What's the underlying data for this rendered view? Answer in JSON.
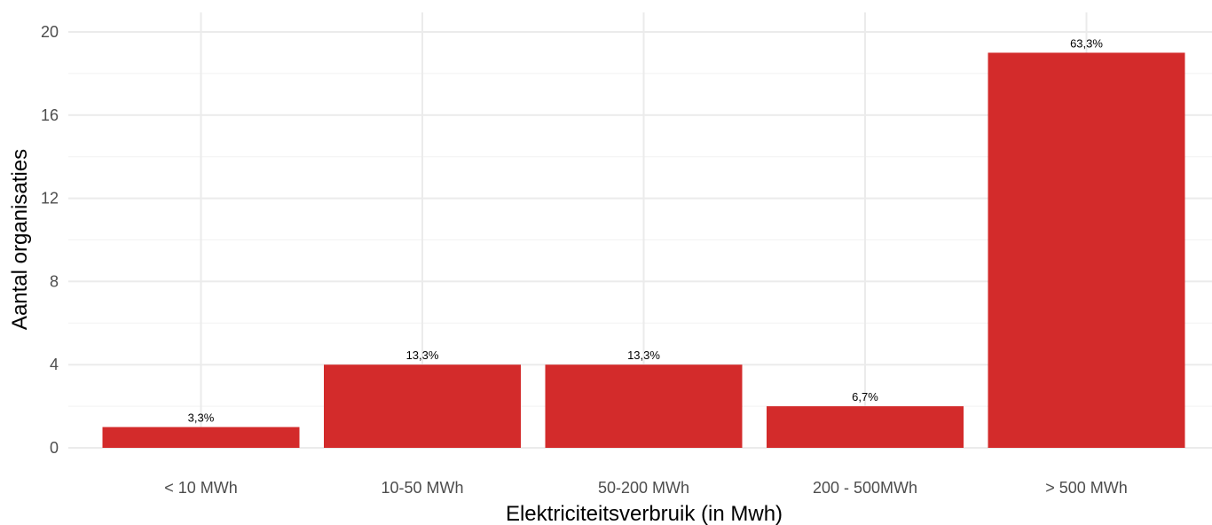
{
  "chart_data": {
    "type": "bar",
    "title": "",
    "xlabel": "Elektriciteitsverbruik (in Mwh)",
    "ylabel": "Aantal organisaties",
    "categories": [
      "< 10 MWh",
      "10-50 MWh",
      "50-200 MWh",
      "200 - 500MWh",
      "> 500 MWh"
    ],
    "values": [
      1,
      4,
      4,
      2,
      19
    ],
    "data_labels": [
      "3,3%",
      "13,3%",
      "13,3%",
      "6,7%",
      "63,3%"
    ],
    "ylim": [
      0,
      20.5
    ],
    "yticks": [
      0,
      4,
      8,
      12,
      16,
      20
    ],
    "ytick_labels": [
      "0",
      "4",
      "8",
      "12",
      "16",
      "20"
    ],
    "bar_color": "#D32B2B",
    "grid": true,
    "legend": "none"
  }
}
